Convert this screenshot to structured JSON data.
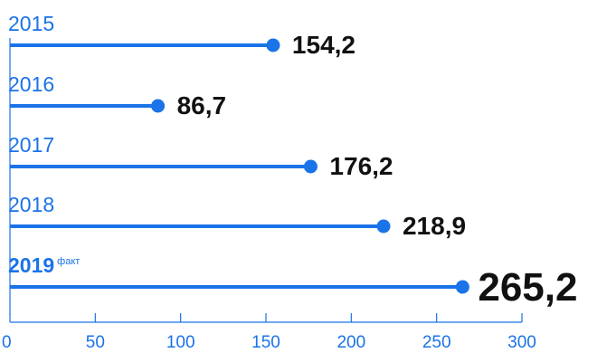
{
  "colors": {
    "accent": "#1a73e8",
    "value_text": "#111111",
    "background": "#ffffff"
  },
  "chart_data": {
    "type": "bar",
    "style": "lollipop-horizontal",
    "categories": [
      "2015",
      "2016",
      "2017",
      "2018",
      "2019"
    ],
    "values": [
      154.2,
      86.7,
      176.2,
      218.9,
      265.2
    ],
    "value_labels": [
      "154,2",
      "86,7",
      "176,2",
      "218,9",
      "265,2"
    ],
    "highlighted_index": 4,
    "highlight_suffix": "факт",
    "xlim": [
      0,
      300
    ],
    "x_ticks": [
      0,
      50,
      100,
      150,
      200,
      250,
      300
    ],
    "title": "",
    "xlabel": "",
    "ylabel": "",
    "grid": false,
    "legend": "none"
  }
}
